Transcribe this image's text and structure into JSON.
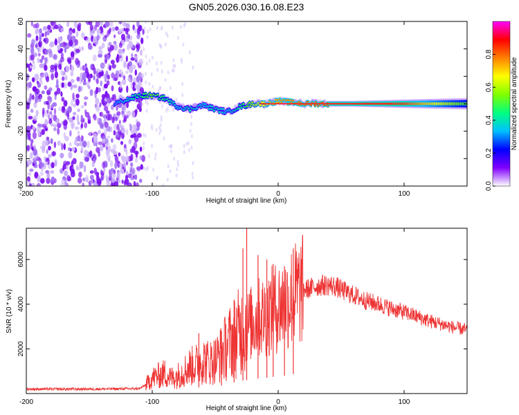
{
  "title": "GN05.2026.030.16.08.E23",
  "chart_data": [
    {
      "type": "heatmap",
      "name": "spectrogram",
      "xlabel": "Height of straight line (km)",
      "ylabel": "Frequency (Hz)",
      "xlim": [
        -200,
        150
      ],
      "ylim": [
        -60,
        60
      ],
      "xticks": [
        -200,
        -100,
        0,
        100
      ],
      "yticks": [
        60,
        40,
        20,
        0,
        -20,
        -40,
        -60
      ],
      "colorbar": {
        "label": "Normalized spectral amplitude",
        "range": [
          0,
          1
        ],
        "ticks": [
          0.0,
          0.2,
          0.4,
          0.6,
          0.8
        ],
        "colormap": [
          "#ffffff",
          "#8000ff",
          "#0000ff",
          "#00c0ff",
          "#00ff80",
          "#80ff00",
          "#ffff00",
          "#ff8000",
          "#ff0000",
          "#ff00ff"
        ]
      },
      "noise_region_x": [
        -200,
        -107
      ],
      "signal_track": {
        "x": [
          -130,
          -110,
          -100,
          -90,
          -80,
          -70,
          -60,
          -50,
          -40,
          -30,
          -20,
          -10,
          0,
          20,
          60,
          100,
          150
        ],
        "freq": [
          0,
          6,
          6,
          4,
          -2,
          -4,
          -1,
          -4,
          -6,
          -2,
          0,
          0,
          2,
          0,
          0,
          0,
          0
        ],
        "amplitude": [
          0.3,
          0.45,
          0.55,
          0.45,
          0.35,
          0.4,
          0.35,
          0.4,
          0.35,
          0.45,
          0.6,
          0.7,
          0.75,
          0.8,
          0.85,
          0.85,
          0.5
        ]
      }
    },
    {
      "type": "line",
      "name": "snr",
      "xlabel": "Height of straight line (km)",
      "ylabel": "SNR (10 * v/v)",
      "xlim": [
        -200,
        150
      ],
      "ylim": [
        0,
        7400
      ],
      "xticks": [
        -200,
        -100,
        0,
        100
      ],
      "yticks": [
        2000,
        4000,
        6000
      ],
      "line_color": "#ee3333",
      "x": [
        -200,
        -150,
        -110,
        -105,
        -100,
        -95,
        -90,
        -85,
        -80,
        -75,
        -70,
        -65,
        -60,
        -55,
        -50,
        -45,
        -40,
        -35,
        -30,
        -25,
        -20,
        -15,
        -10,
        -5,
        0,
        5,
        10,
        15,
        20,
        25,
        30,
        35,
        40,
        45,
        50,
        60,
        70,
        80,
        90,
        100,
        110,
        120,
        130,
        140,
        150
      ],
      "y": [
        200,
        200,
        220,
        400,
        700,
        800,
        900,
        700,
        800,
        1000,
        1200,
        1300,
        1500,
        1400,
        1500,
        1800,
        2200,
        2500,
        2800,
        3000,
        3200,
        3400,
        3500,
        3700,
        3900,
        4000,
        4300,
        4500,
        4650,
        4700,
        4800,
        4850,
        4850,
        4800,
        4650,
        4400,
        4150,
        4000,
        3800,
        3650,
        3450,
        3250,
        3100,
        2950,
        2850
      ],
      "spikes": [
        {
          "x": -63,
          "y": 2700
        },
        {
          "x": -45,
          "y": 2800
        },
        {
          "x": -35,
          "y": 4200
        },
        {
          "x": -28,
          "y": 6500
        },
        {
          "x": -25,
          "y": 7400
        },
        {
          "x": -16,
          "y": 6200
        },
        {
          "x": -9,
          "y": 6000
        },
        {
          "x": -4,
          "y": 5800
        },
        {
          "x": 5,
          "y": 5700
        },
        {
          "x": 12,
          "y": 6500
        }
      ]
    }
  ]
}
